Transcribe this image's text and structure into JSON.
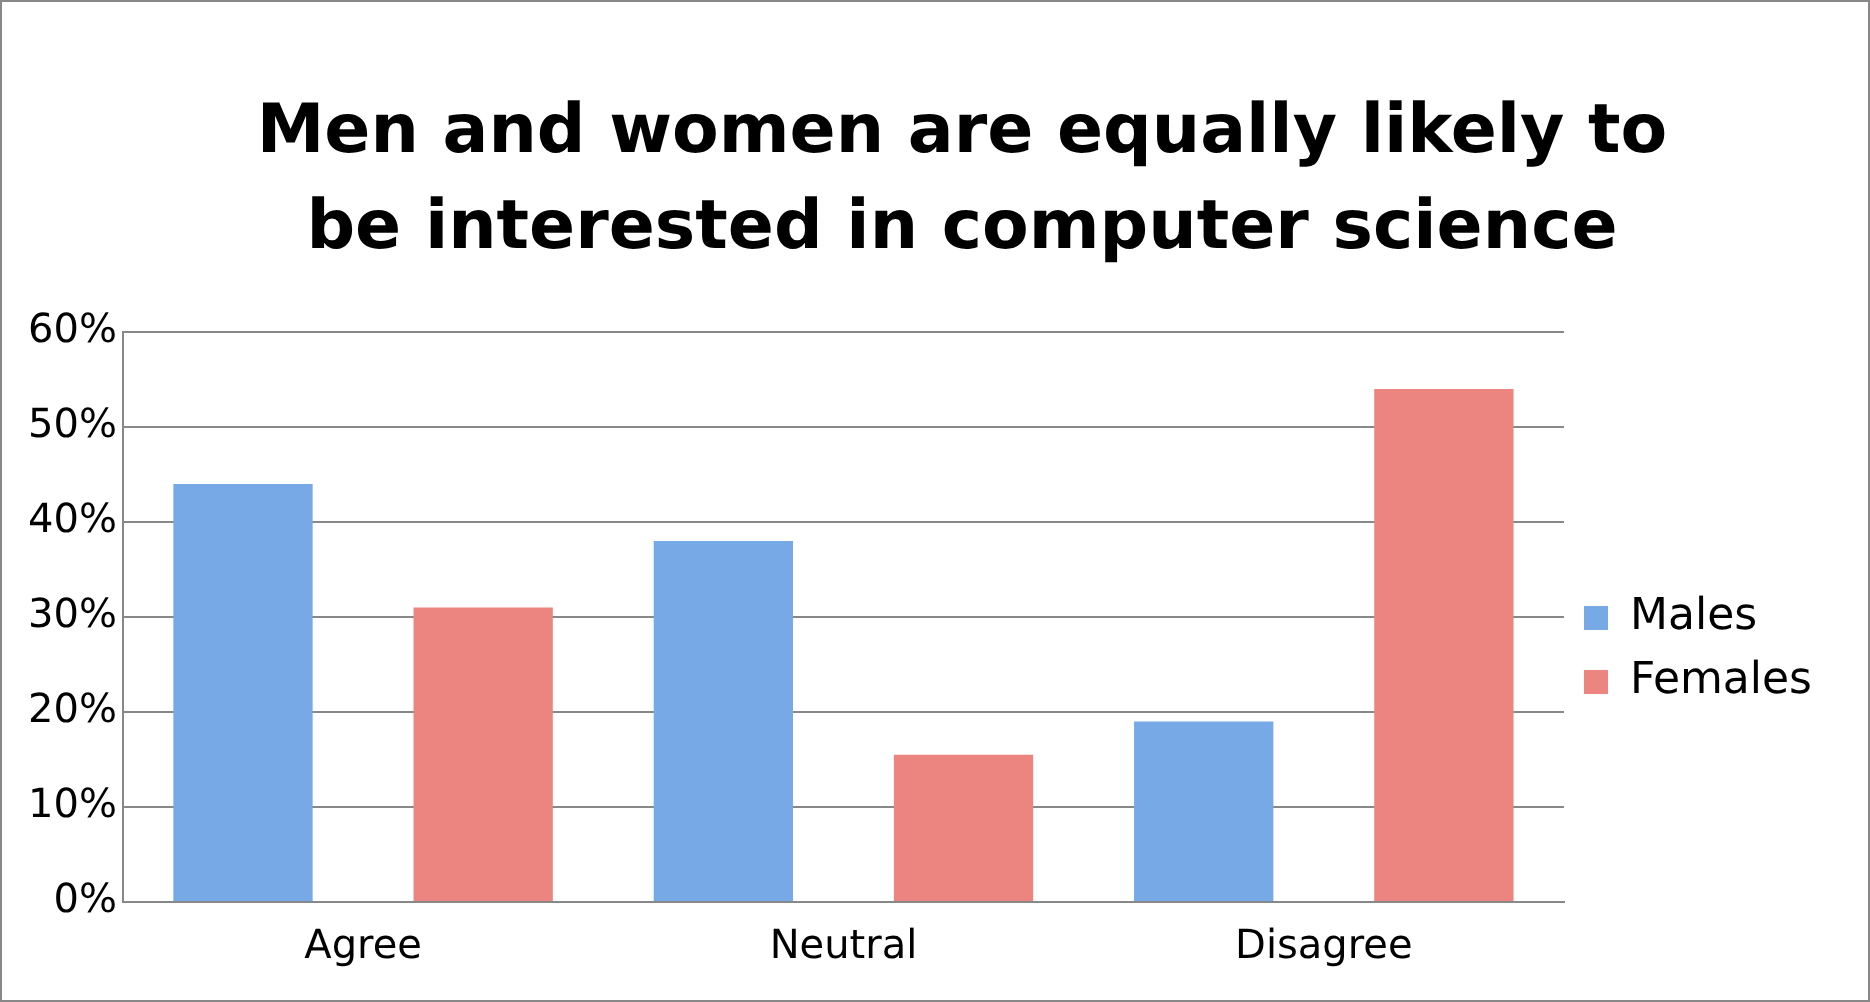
{
  "chart_data": {
    "type": "bar",
    "title": "Men and women are equally likely to be interested in computer science",
    "categories": [
      "Agree",
      "Neutral",
      "Disagree"
    ],
    "series": [
      {
        "name": "Males",
        "color": "#76a9e6",
        "values": [
          44,
          38,
          19
        ]
      },
      {
        "name": "Females",
        "color": "#ec8580",
        "values": [
          31,
          15.5,
          54
        ]
      }
    ],
    "ylim": [
      0,
      60
    ],
    "yticks": [
      {
        "value": 0,
        "label": "0%"
      },
      {
        "value": 10,
        "label": "10%"
      },
      {
        "value": 20,
        "label": "20%"
      },
      {
        "value": 30,
        "label": "30%"
      },
      {
        "value": 40,
        "label": "40%"
      },
      {
        "value": 50,
        "label": "50%"
      },
      {
        "value": 60,
        "label": "60%"
      }
    ],
    "grid": "y",
    "legend": "right"
  }
}
